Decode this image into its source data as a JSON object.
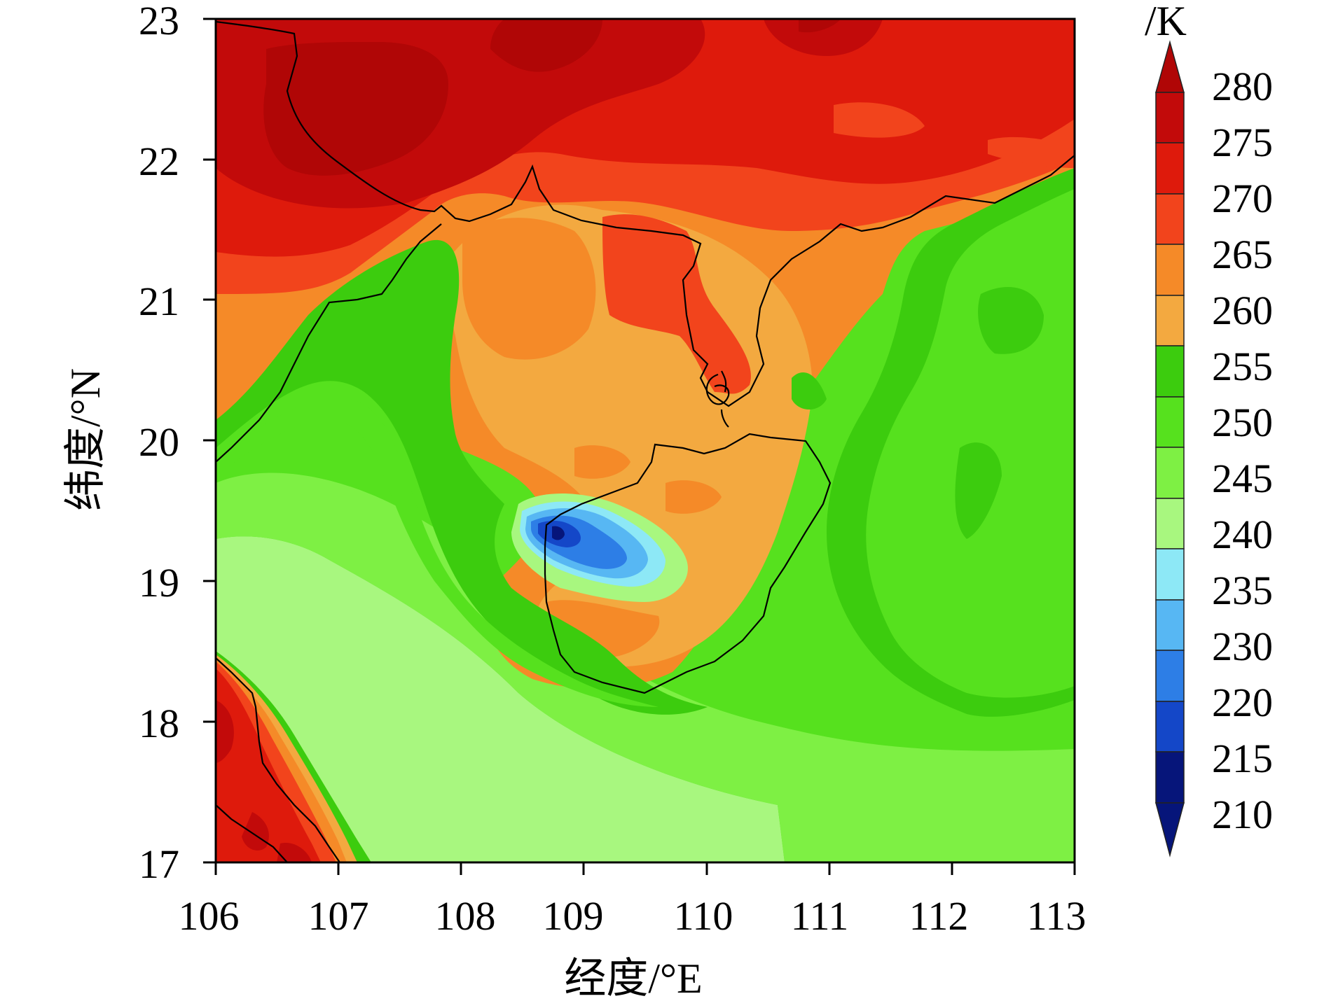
{
  "map": {
    "x_axis_title": "经度/°E",
    "y_axis_title": "纬度/°N",
    "x_ticks": [
      "106",
      "107",
      "108",
      "109",
      "110",
      "111",
      "112",
      "113"
    ],
    "y_ticks": [
      "17",
      "18",
      "19",
      "20",
      "21",
      "22",
      "23"
    ],
    "extent": {
      "lon_min": 106,
      "lon_max": 113,
      "lat_min": 17,
      "lat_max": 23
    }
  },
  "colorbar": {
    "unit": "/K",
    "labels": [
      "280",
      "275",
      "270",
      "265",
      "260",
      "255",
      "250",
      "245",
      "240",
      "235",
      "230",
      "220",
      "215",
      "210"
    ],
    "colors": {
      "above_280": "#b00606",
      "275_280": "#c20a0a",
      "270_275": "#de1a0c",
      "265_270": "#f2441c",
      "260_265": "#f58a28",
      "255_260": "#f3a940",
      "250_255": "#3ccc0e",
      "245_250": "#56e11e",
      "240_245": "#7ef044",
      "235_240": "#a8f77f",
      "230_235": "#8de8f6",
      "220_230": "#57b7f3",
      "215_220": "#2d7ee6",
      "210_215": "#1447c8",
      "below_210": "#06157a"
    }
  }
}
